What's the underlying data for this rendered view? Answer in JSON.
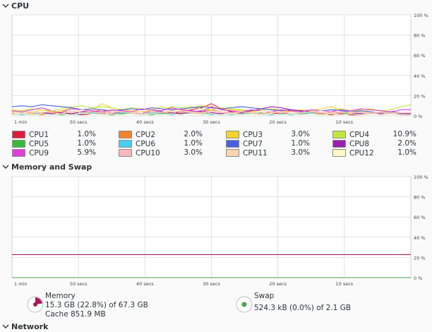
{
  "sections": {
    "cpu": "CPU",
    "memory_swap": "Memory and Swap",
    "network": "Network"
  },
  "colors": {
    "cpu1": "#e01b3c",
    "cpu2": "#f5832c",
    "cpu3": "#f6d32d",
    "cpu4": "#c0e73e",
    "cpu5": "#3bb93b",
    "cpu6": "#45d0f0",
    "cpu7": "#4961e0",
    "cpu8": "#9b1fb0",
    "cpu9": "#e23fd9",
    "cpu10": "#fbb9bf",
    "cpu11": "#fdd5b1",
    "cpu12": "#fff8c8",
    "memory": "#a51d5b",
    "swap": "#4aa14a"
  },
  "cpu_legend": [
    {
      "name": "CPU1",
      "value": "1.0%",
      "color": "#e01b3c"
    },
    {
      "name": "CPU2",
      "value": "2.0%",
      "color": "#f5832c"
    },
    {
      "name": "CPU3",
      "value": "3.0%",
      "color": "#f6d32d"
    },
    {
      "name": "CPU4",
      "value": "10.9%",
      "color": "#c0e73e"
    },
    {
      "name": "CPU5",
      "value": "1.0%",
      "color": "#3bb93b"
    },
    {
      "name": "CPU6",
      "value": "1.0%",
      "color": "#45d0f0"
    },
    {
      "name": "CPU7",
      "value": "1.0%",
      "color": "#4961e0"
    },
    {
      "name": "CPU8",
      "value": "2.0%",
      "color": "#9b1fb0"
    },
    {
      "name": "CPU9",
      "value": "5.9%",
      "color": "#e23fd9"
    },
    {
      "name": "CPU10",
      "value": "3.0%",
      "color": "#fbb9bf"
    },
    {
      "name": "CPU11",
      "value": "3.0%",
      "color": "#fdd5b1"
    },
    {
      "name": "CPU12",
      "value": "1.0%",
      "color": "#fff8c8"
    }
  ],
  "memory": {
    "label": "Memory",
    "usage": "15.3 GB (22.8%) of 67.3 GB",
    "cache": "Cache 851.9 MB",
    "fraction": 0.228
  },
  "swap": {
    "label": "Swap",
    "usage": "524.3 kB (0.0%) of 2.1 GB",
    "fraction": 0.0
  },
  "chart_data": [
    {
      "type": "line",
      "title": "CPU",
      "x_ticks": [
        "1 min",
        "50 secs",
        "40 secs",
        "30 secs",
        "20 secs",
        "10 secs"
      ],
      "y_ticks": [
        "100 %",
        "80 %",
        "60 %",
        "40 %",
        "20 %",
        "0 %"
      ],
      "xlim": [
        60,
        0
      ],
      "ylim": [
        0,
        100
      ],
      "x_unit": "seconds ago",
      "grid": true,
      "series": [
        {
          "name": "CPU1",
          "color": "#e01b3c",
          "values": [
            3,
            2,
            1,
            2,
            4,
            3,
            2,
            1,
            2,
            3,
            5,
            4,
            2,
            1,
            2,
            3,
            2,
            4,
            6,
            8,
            12,
            7,
            4,
            3,
            2,
            1,
            2,
            3,
            2,
            1,
            3,
            2,
            1,
            2,
            1,
            1,
            2,
            3,
            2,
            1,
            1
          ]
        },
        {
          "name": "CPU2",
          "color": "#f5832c",
          "values": [
            2,
            3,
            2,
            1,
            2,
            5,
            3,
            2,
            4,
            6,
            3,
            2,
            3,
            4,
            2,
            3,
            5,
            3,
            2,
            4,
            6,
            4,
            3,
            2,
            3,
            2,
            4,
            3,
            5,
            2,
            3,
            2,
            3,
            4,
            2,
            3,
            2,
            3,
            2,
            2,
            2
          ]
        },
        {
          "name": "CPU3",
          "color": "#f6d32d",
          "values": [
            4,
            5,
            3,
            6,
            4,
            5,
            8,
            6,
            5,
            12,
            8,
            6,
            5,
            4,
            6,
            9,
            7,
            6,
            8,
            10,
            9,
            7,
            6,
            5,
            4,
            6,
            7,
            5,
            4,
            6,
            5,
            7,
            9,
            6,
            5,
            4,
            6,
            5,
            4,
            3,
            3
          ]
        },
        {
          "name": "CPU4",
          "color": "#c0e73e",
          "values": [
            6,
            5,
            7,
            6,
            5,
            7,
            9,
            10,
            8,
            9,
            8,
            6,
            8,
            7,
            6,
            5,
            9,
            8,
            9,
            7,
            6,
            8,
            7,
            6,
            5,
            6,
            7,
            6,
            5,
            4,
            6,
            5,
            6,
            7,
            5,
            6,
            7,
            5,
            6,
            9,
            11
          ]
        },
        {
          "name": "CPU5",
          "color": "#3bb93b",
          "values": [
            1,
            2,
            1,
            3,
            2,
            1,
            2,
            4,
            3,
            2,
            1,
            2,
            3,
            2,
            1,
            2,
            3,
            2,
            5,
            3,
            2,
            1,
            2,
            1,
            2,
            3,
            1,
            2,
            1,
            4,
            2,
            1,
            2,
            3,
            2,
            1,
            2,
            1,
            2,
            1,
            1
          ]
        },
        {
          "name": "CPU6",
          "color": "#45d0f0",
          "values": [
            2,
            1,
            2,
            3,
            1,
            2,
            1,
            2,
            3,
            1,
            2,
            3,
            2,
            1,
            3,
            2,
            1,
            2,
            3,
            2,
            1,
            2,
            1,
            2,
            3,
            2,
            1,
            2,
            1,
            2,
            3,
            1,
            2,
            1,
            2,
            3,
            2,
            1,
            2,
            1,
            1
          ]
        },
        {
          "name": "CPU7",
          "color": "#4961e0",
          "values": [
            9,
            10,
            9,
            11,
            10,
            9,
            8,
            6,
            7,
            6,
            5,
            6,
            7,
            6,
            8,
            7,
            6,
            7,
            8,
            9,
            8,
            7,
            8,
            9,
            8,
            7,
            6,
            5,
            6,
            5,
            4,
            5,
            6,
            5,
            4,
            5,
            4,
            3,
            4,
            3,
            1
          ]
        },
        {
          "name": "CPU8",
          "color": "#9b1fb0",
          "values": [
            3,
            2,
            4,
            3,
            2,
            3,
            2,
            4,
            5,
            3,
            2,
            4,
            3,
            2,
            5,
            4,
            3,
            2,
            4,
            5,
            3,
            2,
            4,
            3,
            5,
            7,
            9,
            8,
            6,
            5,
            4,
            3,
            2,
            4,
            3,
            2,
            3,
            2,
            3,
            2,
            2
          ]
        },
        {
          "name": "CPU9",
          "color": "#e23fd9",
          "values": [
            5,
            4,
            6,
            8,
            5,
            4,
            7,
            6,
            5,
            4,
            6,
            5,
            4,
            7,
            6,
            5,
            8,
            6,
            5,
            4,
            9,
            6,
            5,
            4,
            6,
            5,
            4,
            6,
            5,
            4,
            6,
            5,
            4,
            6,
            5,
            7,
            6,
            5,
            4,
            6,
            6
          ]
        },
        {
          "name": "CPU10",
          "color": "#fbb9bf",
          "values": [
            2,
            3,
            2,
            4,
            3,
            2,
            5,
            3,
            4,
            2,
            3,
            4,
            3,
            2,
            4,
            3,
            5,
            4,
            3,
            2,
            4,
            3,
            2,
            4,
            3,
            2,
            3,
            4,
            2,
            3,
            4,
            3,
            2,
            3,
            4,
            3,
            2,
            3,
            2,
            3,
            3
          ]
        },
        {
          "name": "CPU11",
          "color": "#fdd5b1",
          "values": [
            3,
            2,
            4,
            3,
            5,
            4,
            3,
            6,
            4,
            3,
            5,
            4,
            3,
            4,
            5,
            3,
            4,
            5,
            4,
            3,
            5,
            4,
            3,
            4,
            3,
            5,
            4,
            3,
            4,
            3,
            4,
            5,
            3,
            4,
            3,
            4,
            3,
            4,
            3,
            3,
            3
          ]
        },
        {
          "name": "CPU12",
          "color": "#fff8c8",
          "values": [
            1,
            2,
            1,
            2,
            1,
            2,
            1,
            3,
            2,
            1,
            2,
            1,
            2,
            1,
            2,
            1,
            2,
            1,
            2,
            1,
            2,
            1,
            2,
            1,
            2,
            1,
            2,
            1,
            2,
            1,
            2,
            1,
            2,
            1,
            2,
            1,
            2,
            1,
            2,
            1,
            1
          ]
        }
      ]
    },
    {
      "type": "line",
      "title": "Memory and Swap",
      "x_ticks": [
        "1 min",
        "50 secs",
        "40 secs",
        "30 secs",
        "20 secs",
        "10 secs"
      ],
      "y_ticks": [
        "100 %",
        "80 %",
        "60 %",
        "40 %",
        "20 %",
        "0 %"
      ],
      "xlim": [
        60,
        0
      ],
      "ylim": [
        0,
        100
      ],
      "x_unit": "seconds ago",
      "grid": true,
      "series": [
        {
          "name": "Memory",
          "color": "#a51d5b",
          "values": [
            22.8,
            22.8
          ]
        },
        {
          "name": "Swap",
          "color": "#4aa14a",
          "values": [
            0.0,
            0.0
          ]
        }
      ]
    }
  ]
}
